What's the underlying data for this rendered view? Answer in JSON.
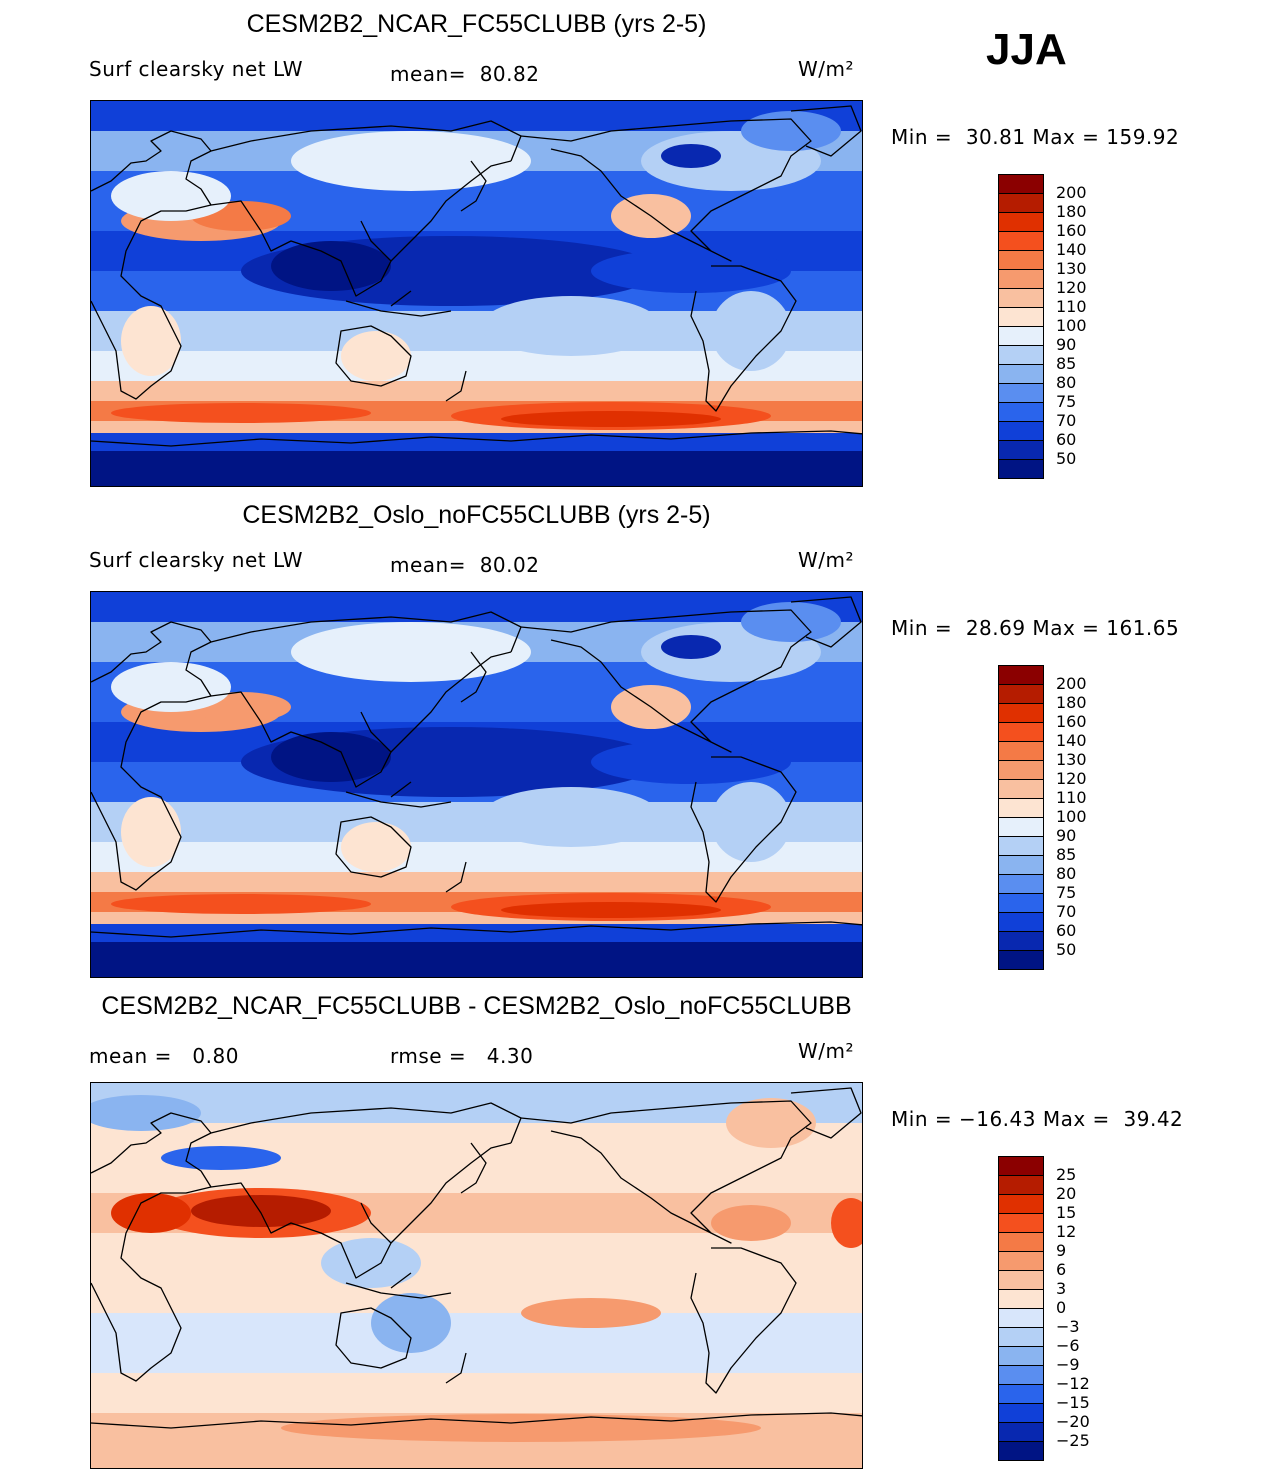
{
  "season": "JJA",
  "panels": [
    {
      "title": "CESM2B2_NCAR_FC55CLUBB (yrs 2-5)",
      "left_text": "Surf clearsky net LW",
      "mid_text": "mean=  80.82",
      "units": "W/m²",
      "minmax": "Min =  30.81 Max = 159.92",
      "palette": "abs"
    },
    {
      "title": "CESM2B2_Oslo_noFC55CLUBB (yrs 2-5)",
      "left_text": "Surf clearsky net LW",
      "mid_text": "mean=  80.02",
      "units": "W/m²",
      "minmax": "Min =  28.69 Max = 161.65",
      "palette": "abs"
    },
    {
      "title": "CESM2B2_NCAR_FC55CLUBB - CESM2B2_Oslo_noFC55CLUBB",
      "left_text": "mean =   0.80",
      "mid_text": "rmse =   4.30",
      "units": "W/m²",
      "minmax": "Min = −16.43 Max =  39.42",
      "palette": "diff"
    }
  ],
  "colorbars": {
    "abs": {
      "labels": [
        "200",
        "180",
        "160",
        "140",
        "130",
        "120",
        "110",
        "100",
        "90",
        "85",
        "80",
        "75",
        "70",
        "60",
        "50"
      ],
      "colors": [
        "#8b0000",
        "#b51c00",
        "#e03000",
        "#f4501e",
        "#f47a46",
        "#f69a6e",
        "#f9c0a0",
        "#fde4d2",
        "#e6f0fb",
        "#b4d0f5",
        "#8ab4f0",
        "#5a8ef0",
        "#2a64ec",
        "#1040d8",
        "#0828b0",
        "#001484"
      ]
    },
    "diff": {
      "labels": [
        "25",
        "20",
        "15",
        "12",
        "9",
        "6",
        "3",
        "0",
        "−3",
        "−6",
        "−9",
        "−12",
        "−15",
        "−20",
        "−25"
      ],
      "colors": [
        "#8b0000",
        "#b51c00",
        "#e03000",
        "#f4501e",
        "#f47a46",
        "#f69a6e",
        "#f9c0a0",
        "#fde4d2",
        "#d8e6fb",
        "#b4d0f5",
        "#8ab4f0",
        "#5a8ef0",
        "#2a64ec",
        "#1040d8",
        "#0828b0",
        "#001484"
      ]
    }
  }
}
